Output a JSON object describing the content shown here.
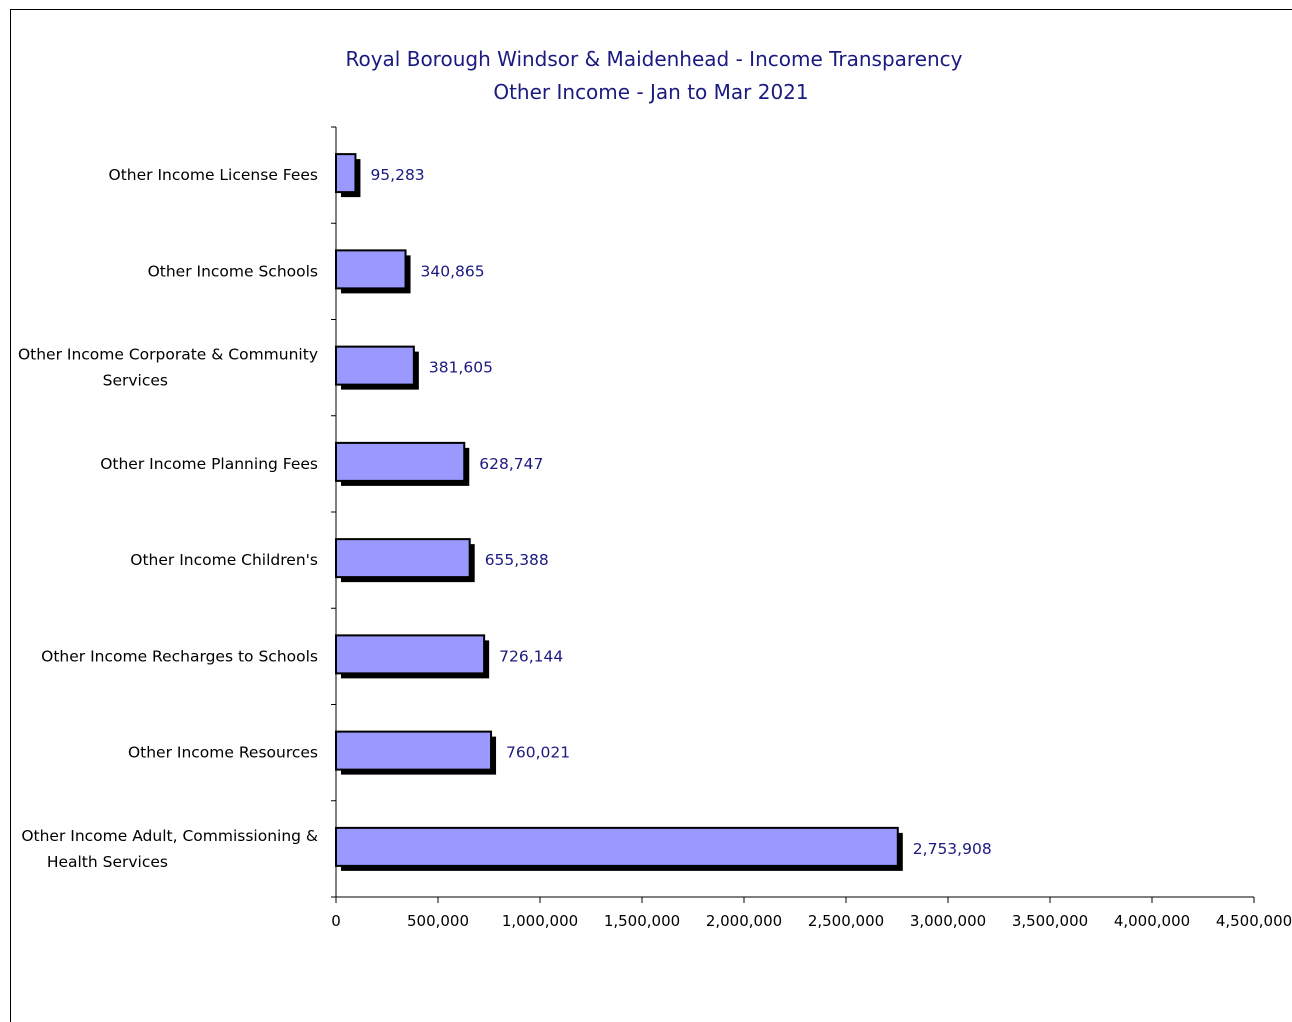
{
  "chart_data": {
    "type": "bar",
    "orientation": "horizontal",
    "title": "Royal Borough Windsor & Maidenhead - Income Transparency",
    "subtitle": "Other Income - Jan to Mar 2021",
    "xlabel": "",
    "ylabel": "",
    "xlim": [
      0,
      4500000
    ],
    "x_ticks": [
      0,
      500000,
      1000000,
      1500000,
      2000000,
      2500000,
      3000000,
      3500000,
      4000000,
      4500000
    ],
    "x_tick_labels": [
      "0",
      "500,000",
      "1,000,000",
      "1,500,000",
      "2,000,000",
      "2,500,000",
      "3,000,000",
      "3,500,000",
      "4,000,000",
      "4,500,000"
    ],
    "grid": false,
    "legend": "none",
    "categories": [
      [
        "Other Income License Fees"
      ],
      [
        "Other Income Schools"
      ],
      [
        "Other Income Corporate & Community",
        "Services"
      ],
      [
        "Other Income Planning Fees"
      ],
      [
        "Other Income Children's"
      ],
      [
        "Other Income Recharges to Schools"
      ],
      [
        "Other Income Resources"
      ],
      [
        "Other Income Adult, Commissioning &",
        "Health Services"
      ]
    ],
    "values": [
      95283,
      340865,
      381605,
      628747,
      655388,
      726144,
      760021,
      2753908
    ],
    "data_labels": [
      "95,283",
      "340,865",
      "381,605",
      "628,747",
      "655,388",
      "726,144",
      "760,021",
      "2,753,908"
    ],
    "colors": {
      "bar_fill": "#9999ff",
      "bar_outline": "#000000",
      "bar_shadow": "#000000",
      "title": "#1a1a80",
      "data_label": "#1a1a80",
      "axis": "#000000"
    }
  }
}
